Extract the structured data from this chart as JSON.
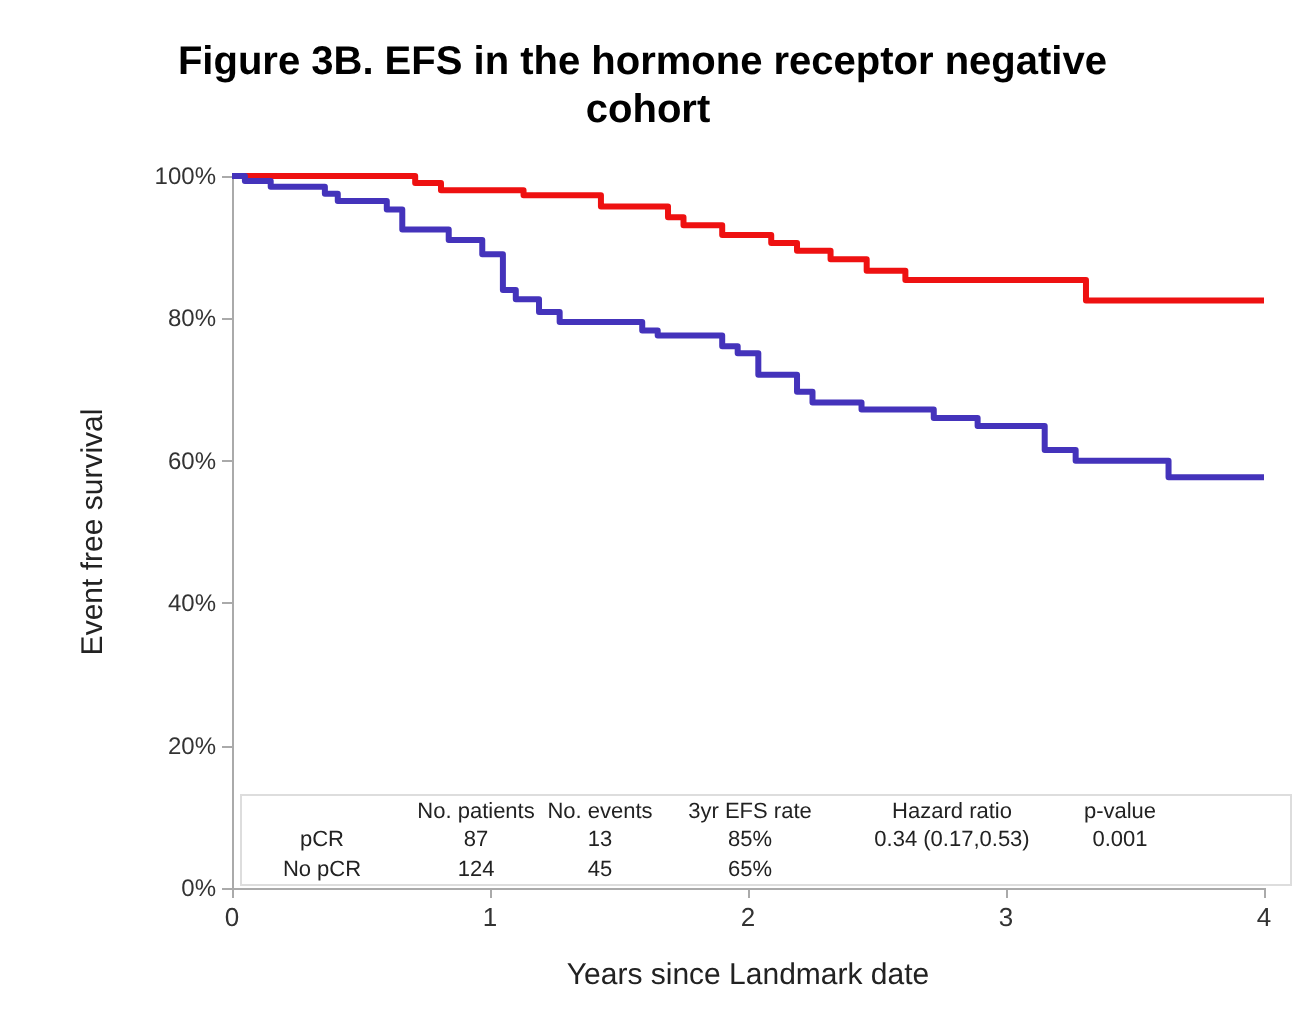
{
  "chart_data": {
    "type": "step",
    "title": "Figure 3B. EFS in the hormone receptor negative cohort",
    "xlabel": "Years since Landmark date",
    "ylabel": "Event free survival",
    "xlim": [
      0,
      4
    ],
    "xticks": [
      0,
      1,
      2,
      3,
      4
    ],
    "ylim": [
      0,
      100
    ],
    "yticks": [
      {
        "value": 0,
        "label": "0%"
      },
      {
        "value": 20,
        "label": "20%"
      },
      {
        "value": 40,
        "label": "40%"
      },
      {
        "value": 60,
        "label": "60%"
      },
      {
        "value": 80,
        "label": "80%"
      },
      {
        "value": 100,
        "label": "100%"
      }
    ],
    "grid": false,
    "marker": "none",
    "line_style": "solid",
    "series": [
      {
        "color": "#ee1111",
        "x": [
          0,
          0.71,
          0.81,
          1.13,
          1.43,
          1.69,
          1.75,
          1.9,
          2.09,
          2.19,
          2.32,
          2.46,
          2.61,
          3.31,
          4
        ],
        "values": [
          100,
          99,
          98,
          97.3,
          95.7,
          94.2,
          93.1,
          91.7,
          90.6,
          89.5,
          88.3,
          86.7,
          85.4,
          82.5,
          82.5
        ]
      },
      {
        "color": "#4433bb",
        "x": [
          0,
          0.05,
          0.15,
          0.36,
          0.41,
          0.6,
          0.66,
          0.84,
          0.97,
          1.05,
          1.1,
          1.19,
          1.27,
          1.59,
          1.65,
          1.9,
          1.96,
          2.04,
          2.19,
          2.25,
          2.44,
          2.72,
          2.89,
          3.15,
          3.27,
          3.63,
          4
        ],
        "values": [
          100,
          99.3,
          98.5,
          97.5,
          96.5,
          95.3,
          92.5,
          91,
          89,
          84,
          82.7,
          80.9,
          79.5,
          78.3,
          77.6,
          76.1,
          75.1,
          72.1,
          69.7,
          68.2,
          67.2,
          66,
          64.9,
          61.5,
          60,
          57.7,
          57.7
        ]
      }
    ],
    "annotations": [
      "No. patients",
      "No. events",
      "3yr EFS rate",
      "Hazard ratio",
      "p-value",
      "pCR",
      "87",
      "13",
      "85%",
      "0.34 (0.17,0.53)",
      "0.001",
      "No pCR",
      "124",
      "45",
      "65%"
    ]
  }
}
